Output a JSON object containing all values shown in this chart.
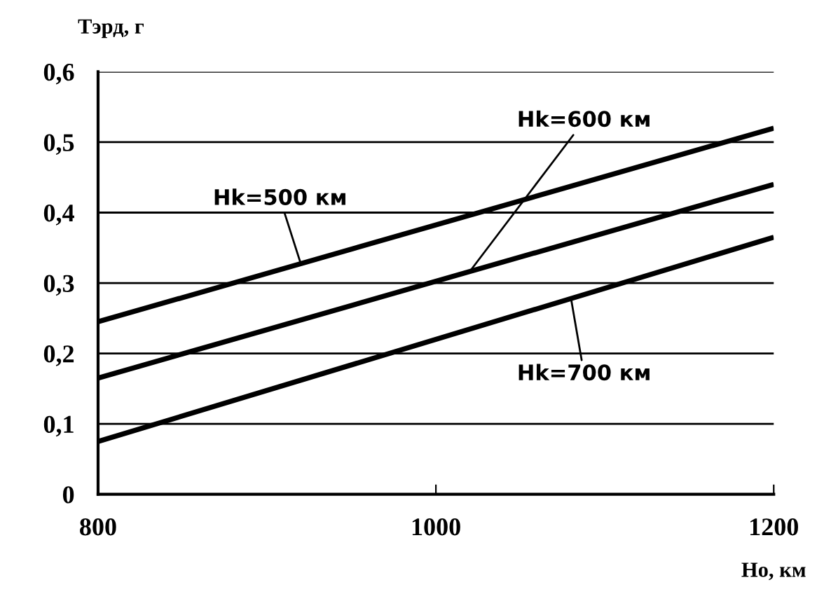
{
  "chart_data": {
    "type": "line",
    "xlabel": "Ho, км",
    "ylabel": "Тэрд, г",
    "x": [
      800,
      1200
    ],
    "series": [
      {
        "name": "Hk=500 км",
        "color": "#000000",
        "values": [
          0.245,
          0.52
        ]
      },
      {
        "name": "Hk=600 км",
        "color": "#000000",
        "values": [
          0.165,
          0.44
        ]
      },
      {
        "name": "Hk=700 км",
        "color": "#000000",
        "values": [
          0.075,
          0.365
        ]
      }
    ],
    "xlim": [
      800,
      1200
    ],
    "ylim": [
      0,
      0.6
    ],
    "xticks": [
      800,
      1000,
      1200
    ],
    "yticks": [
      0,
      {
        "value": 0.1,
        "label": "0,1"
      },
      {
        "value": 0.2,
        "label": "0,2"
      },
      {
        "value": 0.3,
        "label": "0,3"
      },
      {
        "value": 0.4,
        "label": "0,4"
      },
      {
        "value": 0.5,
        "label": "0,5"
      },
      {
        "value": 0.6,
        "label": "0,6"
      }
    ],
    "grid": "y",
    "legend": false,
    "marker": "none",
    "line_style": "solid"
  }
}
